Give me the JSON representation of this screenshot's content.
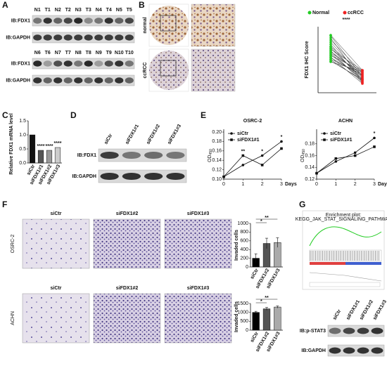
{
  "panel_a": {
    "label": "A",
    "lanes_1": [
      "N1",
      "T1",
      "N2",
      "T2",
      "N3",
      "T3",
      "N4",
      "T4",
      "N5",
      "T5"
    ],
    "lanes_2": [
      "N6",
      "T6",
      "N7",
      "T7",
      "N8",
      "T8",
      "N9",
      "T9",
      "N10",
      "T10"
    ],
    "blots_1": [
      "IB:FDX1",
      "IB:GAPDH"
    ],
    "blots_2": [
      "IB:FDX1",
      "IB:GAPDH"
    ]
  },
  "panel_b": {
    "label": "B",
    "rows": [
      "normal",
      "ccRCC"
    ],
    "legend": [
      {
        "name": "Normal",
        "color": "#22cc22"
      },
      {
        "name": "ccRCC",
        "color": "#ee2222"
      }
    ],
    "significance": "****",
    "y_label": "FDX1 IHC Score"
  },
  "panel_c": {
    "label": "C",
    "type": "bar",
    "y_label": "Relative FDX1 mRNA level",
    "categories": [
      "siCtr",
      "siFDX1#1",
      "siFDX1#2",
      "siFDX1#3"
    ],
    "values": [
      1.0,
      0.45,
      0.45,
      0.55
    ],
    "colors": [
      "#111111",
      "#555555",
      "#999999",
      "#cccccc"
    ],
    "ylim": [
      0,
      1.5
    ],
    "yticks": [
      {
        "value": 0,
        "label": "0.0"
      },
      {
        "value": 0.5,
        "label": "0.5"
      },
      {
        "value": 1,
        "label": "1.0"
      },
      {
        "value": 1.5,
        "label": "1.5"
      }
    ],
    "annotations": [
      "****",
      "****",
      "****"
    ]
  },
  "panel_d": {
    "label": "D",
    "lanes": [
      "siCtr",
      "siFDX1#1",
      "siFDX1#2",
      "siFDX1#3"
    ],
    "blots": [
      "IB:FDX1",
      "IB:GAPDH"
    ]
  },
  "panel_e": {
    "label": "E",
    "charts": [
      {
        "title": "OSRC-2",
        "type": "line",
        "x": [
          0,
          1,
          2,
          3
        ],
        "xlim": [
          0,
          3
        ],
        "xticks": [
          0,
          1,
          2,
          3
        ],
        "x_label": "Days",
        "y_label": {
          "text": "OD",
          "sub": "450"
        },
        "ylim": [
          0.1,
          0.2
        ],
        "yticks": [
          {
            "value": 0.1,
            "label": "0.10"
          },
          {
            "value": 0.12,
            "label": "0.12"
          },
          {
            "value": 0.14,
            "label": "0.14"
          },
          {
            "value": 0.16,
            "label": "0.16"
          },
          {
            "value": 0.18,
            "label": "0.18"
          },
          {
            "value": 0.2,
            "label": "0.20"
          }
        ],
        "series": [
          {
            "name": "siCtr",
            "values": [
              0.105,
              0.13,
              0.15,
              0.18
            ]
          },
          {
            "name": "siFDX1#1",
            "values": [
              0.105,
              0.15,
              0.13,
              0.165
            ]
          }
        ],
        "annotations": [
          "**",
          "*",
          "*"
        ]
      },
      {
        "title": "ACHN",
        "type": "line",
        "x": [
          0,
          1,
          2,
          3
        ],
        "xlim": [
          0,
          3
        ],
        "xticks": [
          0,
          1,
          2,
          3
        ],
        "x_label": "Days",
        "y_label": {
          "text": "OD",
          "sub": "450"
        },
        "ylim": [
          0.12,
          0.2
        ],
        "yticks": [
          {
            "value": 0.12,
            "label": "0.12"
          },
          {
            "value": 0.14,
            "label": "0.14"
          },
          {
            "value": 0.16,
            "label": "0.16"
          },
          {
            "value": 0.18,
            "label": "0.18"
          }
        ],
        "series": [
          {
            "name": "siCtr",
            "values": [
              0.13,
              0.15,
              0.165,
              0.19
            ]
          },
          {
            "name": "siFDX1#1",
            "values": [
              0.13,
              0.155,
              0.16,
              0.175
            ]
          }
        ],
        "annotations": [
          "*"
        ]
      }
    ]
  },
  "panel_f": {
    "label": "F",
    "columns": [
      "siCtr",
      "siFDX1#2",
      "siFDX1#3"
    ],
    "charts": [
      {
        "row": "OSRC-2",
        "type": "bar",
        "y_label": "Invaded cells",
        "categories": [
          "siCtr",
          "siFDX1#2",
          "siFDX1#3"
        ],
        "values": [
          200,
          540,
          560
        ],
        "errors": [
          100,
          120,
          110
        ],
        "ylim": [
          0,
          1000
        ],
        "yticks": [
          0,
          200,
          400,
          600,
          800,
          1000
        ],
        "annotations": [
          "*",
          "**"
        ]
      },
      {
        "row": "ACHN",
        "type": "bar",
        "y_label": "Invaded cells",
        "categories": [
          "siCtr",
          "siFDX1#2",
          "siFDX1#3"
        ],
        "values": [
          1000,
          1200,
          1300
        ],
        "errors": [
          60,
          80,
          60
        ],
        "ylim": [
          0,
          1500
        ],
        "yticks": [
          0,
          500,
          1000,
          1500
        ],
        "annotations": [
          "*",
          "**"
        ]
      }
    ]
  },
  "panel_g": {
    "label": "G",
    "plot_title": "Enrichment plot:",
    "pathway": "KEGG_JAK_STAT_SIGNALING_PATHWAY",
    "lanes": [
      "siCtr",
      "siFDX1#1",
      "siFDX1#2",
      "siFDX1#3"
    ],
    "blots": [
      "IB:p-STAT3",
      "IB:GAPDH"
    ]
  }
}
